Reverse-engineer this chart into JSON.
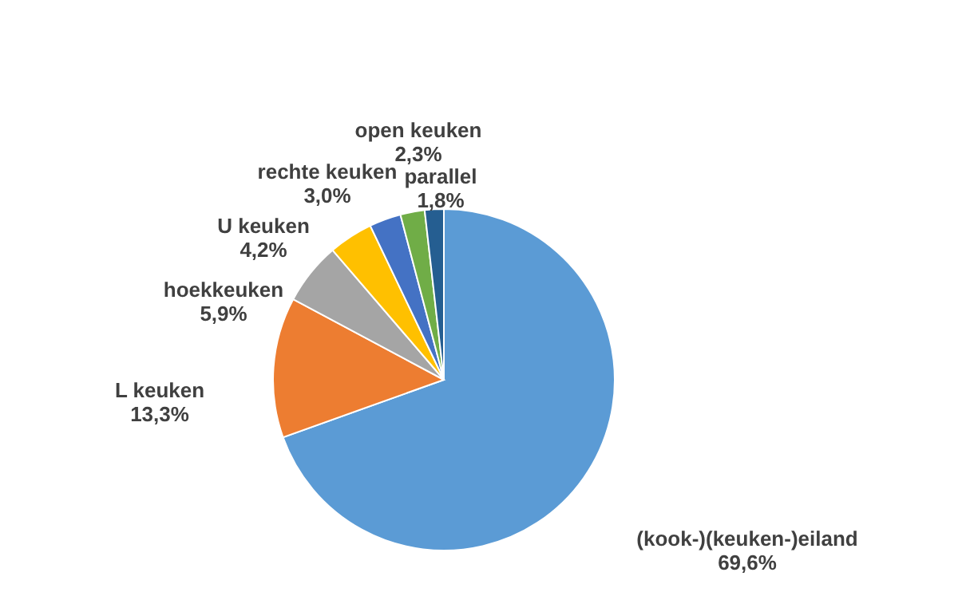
{
  "chart_data": {
    "type": "pie",
    "categories": [
      "(kook-)(keuken-)eiland",
      "L keuken",
      "hoekkeuken",
      "U keuken",
      "rechte keuken",
      "open keuken",
      "parallel"
    ],
    "values": [
      69.6,
      13.3,
      5.9,
      4.2,
      3.0,
      2.3,
      1.8
    ],
    "value_labels": [
      "69,6%",
      "13,3%",
      "5,9%",
      "4,2%",
      "3,0%",
      "2,3%",
      "1,8%"
    ],
    "colors": [
      "#5b9bd5",
      "#ed7d31",
      "#a5a5a5",
      "#ffc000",
      "#4472c4",
      "#70ad47",
      "#255e91"
    ],
    "legend": false
  }
}
